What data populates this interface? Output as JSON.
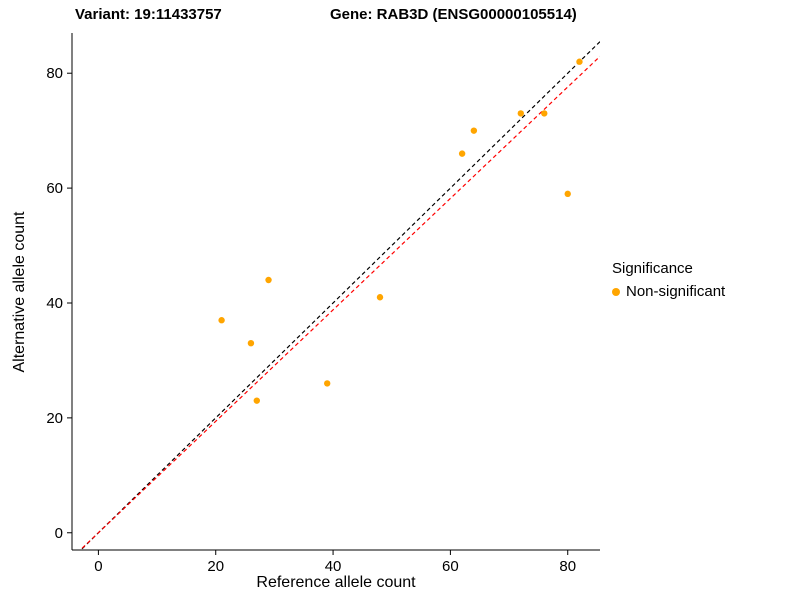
{
  "titles": {
    "variant": "Variant: 19:11433757",
    "gene": "Gene: RAB3D (ENSG00000105514)"
  },
  "chart_data": {
    "type": "scatter",
    "title": "",
    "xlabel": "Reference allele count",
    "ylabel": "Alternative allele count",
    "xlim": [
      -4.5,
      85.5
    ],
    "ylim": [
      -3,
      87
    ],
    "xticks": [
      0,
      20,
      40,
      60,
      80
    ],
    "yticks": [
      0,
      20,
      40,
      60,
      80
    ],
    "grid": false,
    "series": [
      {
        "name": "Non-significant",
        "color": "#FFA500",
        "points": [
          {
            "x": 21,
            "y": 37
          },
          {
            "x": 26,
            "y": 33
          },
          {
            "x": 27,
            "y": 23
          },
          {
            "x": 29,
            "y": 44
          },
          {
            "x": 39,
            "y": 26
          },
          {
            "x": 48,
            "y": 41
          },
          {
            "x": 62,
            "y": 66
          },
          {
            "x": 64,
            "y": 70
          },
          {
            "x": 72,
            "y": 73
          },
          {
            "x": 76,
            "y": 73
          },
          {
            "x": 80,
            "y": 59
          },
          {
            "x": 82,
            "y": 82
          }
        ]
      }
    ],
    "reference_lines": [
      {
        "name": "identity-line",
        "slope": 1.0,
        "intercept": 0,
        "color": "#000000",
        "dash": "4 3"
      },
      {
        "name": "fit-line",
        "slope": 0.97,
        "intercept": 0,
        "color": "#FF0000",
        "dash": "4 3"
      }
    ],
    "legend": {
      "title": "Significance",
      "position": "right",
      "items": [
        {
          "label": "Non-significant",
          "color": "#FFA500"
        }
      ]
    }
  }
}
